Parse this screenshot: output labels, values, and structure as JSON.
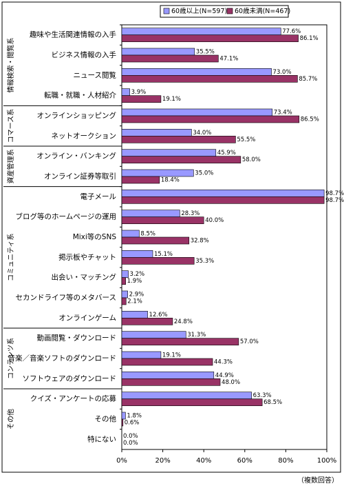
{
  "chart_data": {
    "type": "bar",
    "orientation": "horizontal",
    "categories": [
      "趣味や生活関連情報の入手",
      "ビジネス情報の入手",
      "ニュース閲覧",
      "転職・就職・人材紹介",
      "オンラインショッピング",
      "ネットオークション",
      "オンライン・バンキング",
      "オンライン証券等取引",
      "電子メール",
      "ブログ等のホームページの運用",
      "Mixi等のSNS",
      "掲示板やチャット",
      "出会い・マッチング",
      "セカンドライフ等のメタバース",
      "オンラインゲーム",
      "動画閲覧・ダウンロード",
      "音楽／音楽ソフトのダウンロード",
      "ソフトウェアのダウンロード",
      "クイズ・アンケートの応募",
      "その他",
      "特にない"
    ],
    "groups": [
      "情報検索・閲覧系",
      "コマース系",
      "資産管理系",
      "コミュニティ系",
      "コンテンツ系",
      "その他"
    ],
    "series": [
      {
        "name": "60歳以上(N=597)",
        "color": "#9999ff",
        "values": [
          77.6,
          35.5,
          73.0,
          3.9,
          73.4,
          34.0,
          45.9,
          35.0,
          98.7,
          28.3,
          8.5,
          15.1,
          3.2,
          2.9,
          12.6,
          31.3,
          19.1,
          44.9,
          63.3,
          1.8,
          0.0
        ],
        "value_labels": [
          "77.6%",
          "35.5%",
          "73.0%",
          "3.9%",
          "73.4%",
          "34.0%",
          "45.9%",
          "35.0%",
          "98.7%",
          "28.3%",
          "8.5%",
          "15.1%",
          "3.2%",
          "2.9%",
          "12.6%",
          "31.3%",
          "19.1%",
          "44.9%",
          "63.3%",
          "1.8%",
          "0.0%"
        ]
      },
      {
        "name": "60歳未満(N=467)",
        "color": "#993366",
        "values": [
          86.1,
          47.1,
          85.7,
          19.1,
          86.5,
          55.5,
          58.0,
          18.4,
          98.7,
          40.0,
          32.8,
          35.3,
          1.9,
          2.1,
          24.8,
          57.0,
          44.3,
          48.0,
          68.5,
          0.6,
          0.0
        ],
        "value_labels": [
          "86.1%",
          "47.1%",
          "85.7%",
          "19.1%",
          "86.5%",
          "55.5%",
          "58.0%",
          "18.4%",
          "98.7%",
          "40.0%",
          "32.8%",
          "35.3%",
          "1.9%",
          "2.1%",
          "24.8%",
          "57.0%",
          "44.3%",
          "48.0%",
          "68.5%",
          "0.6%",
          "0.0%"
        ]
      }
    ],
    "xlim": [
      0,
      100
    ],
    "xticks": [
      {
        "value": 0,
        "label": "0%"
      },
      {
        "value": 20,
        "label": "20%"
      },
      {
        "value": 40,
        "label": "40%"
      },
      {
        "value": 60,
        "label": "60%"
      },
      {
        "value": 80,
        "label": "80%"
      },
      {
        "value": 100,
        "label": "100%"
      }
    ],
    "grid": false,
    "legend": "top",
    "note": "（複数回答）"
  }
}
